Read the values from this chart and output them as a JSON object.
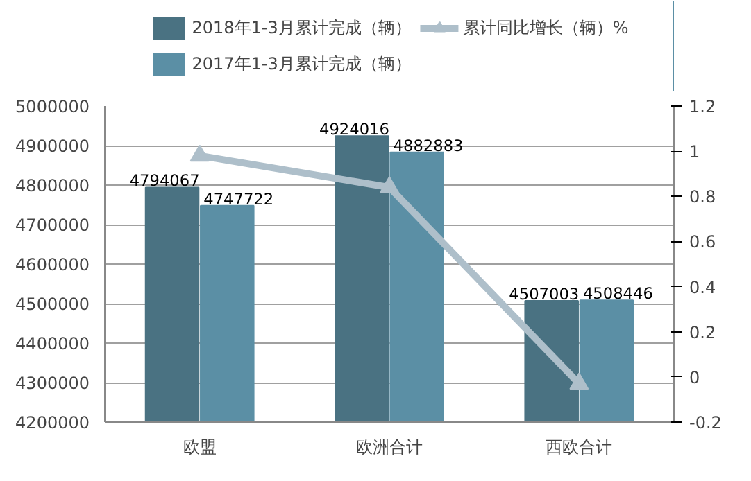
{
  "chart_data": {
    "type": "bar",
    "categories": [
      "欧盟",
      "欧洲合计",
      "西欧合计"
    ],
    "series": [
      {
        "name": "2018年1-3月累计完成（辆）",
        "color": "#4a7282",
        "values": [
          4794067,
          4924016,
          4507003
        ],
        "value_labels": [
          "4794067",
          "4924016",
          "4507003"
        ]
      },
      {
        "name": "2017年1-3月累计完成（辆）",
        "color": "#5b8fa5",
        "values": [
          4747722,
          4882883,
          4508446
        ],
        "value_labels": [
          "4747722",
          "4882883",
          "4508446"
        ]
      },
      {
        "name": "累计同比增长（辆）%",
        "type": "line",
        "axis": "y2",
        "color": "#aebfca",
        "marker": "triangle",
        "values": [
          0.98,
          0.84,
          -0.03
        ]
      }
    ],
    "ylim": [
      4200000,
      5000000
    ],
    "yticks": [
      4200000,
      4300000,
      4400000,
      4500000,
      4600000,
      4700000,
      4800000,
      4900000,
      5000000
    ],
    "y2lim": [
      -0.2,
      1.2
    ],
    "y2ticks": [
      -0.2,
      0,
      0.2,
      0.4,
      0.6,
      0.8,
      1,
      1.2
    ],
    "grid": "y",
    "legend": "top"
  }
}
